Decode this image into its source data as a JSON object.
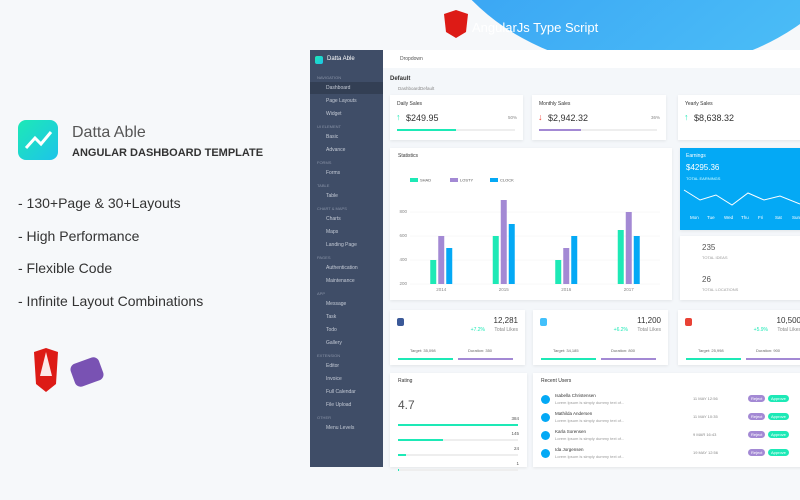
{
  "promo": {
    "brand": "Datta Able",
    "subtitle": "ANGULAR DASHBOARD TEMPLATE",
    "features": [
      "- 130+Page & 30+Layouts",
      "- High Performance",
      "- Flexible Code",
      "- Infinite Layout Combinations"
    ],
    "banner": "AngularJs Type Script"
  },
  "dashboard": {
    "sidebar": {
      "brand": "Datta Able",
      "groups": [
        {
          "header": "NAVIGATION",
          "items": [
            "Dashboard",
            "Page Layouts",
            "Widget"
          ]
        },
        {
          "header": "UI ELEMENT",
          "items": [
            "Basic",
            "Advance"
          ]
        },
        {
          "header": "FORMS",
          "items": [
            "Forms"
          ]
        },
        {
          "header": "TABLE",
          "items": [
            "Table"
          ]
        },
        {
          "header": "CHART & MAPS",
          "items": [
            "Charts",
            "Maps",
            "Landing Page"
          ]
        },
        {
          "header": "PAGES",
          "items": [
            "Authentication",
            "Maintenance"
          ]
        },
        {
          "header": "APP",
          "items": [
            "Message",
            "Task",
            "Todo",
            "Gallery"
          ]
        },
        {
          "header": "EXTENSION",
          "items": [
            "Editor",
            "Invoice",
            "Full Calendar",
            "File Upload"
          ]
        },
        {
          "header": "OTHER",
          "items": [
            "Menu Levels"
          ]
        }
      ]
    },
    "topbar": {
      "menu": "Dropdown"
    },
    "page": {
      "title": "Default",
      "breadcrumb": [
        "Dashboard",
        "Default"
      ]
    },
    "sales": [
      {
        "title": "Daily Sales",
        "value": "$249.95",
        "percent": "50%"
      },
      {
        "title": "Monthly Sales",
        "value": "$2,942.32",
        "percent": "36%"
      },
      {
        "title": "Yearly Sales",
        "value": "$8,638.32"
      }
    ],
    "statistics": {
      "title": "Statistics",
      "categories": [
        "2014",
        "2015",
        "2016",
        "2017"
      ],
      "series": [
        {
          "name": "SHAD",
          "color": "#1de9b6",
          "values": [
            400,
            600,
            400,
            650
          ]
        },
        {
          "name": "LOSTY",
          "color": "#a389d4",
          "values": [
            600,
            900,
            500,
            800
          ]
        },
        {
          "name": "CLOCK",
          "color": "#04a9f5",
          "values": [
            500,
            700,
            600,
            600
          ]
        }
      ],
      "ylim": [
        200,
        900
      ],
      "yticks": [
        200,
        400,
        600,
        800
      ]
    },
    "earnings": {
      "title": "Earnings",
      "value": "$4295.36",
      "caption": "TOTAL EARNINGS",
      "days": [
        "Mon",
        "Tue",
        "Wed",
        "Thu",
        "Fri",
        "Sat",
        "Sun"
      ]
    },
    "totals": [
      {
        "value": "235",
        "label": "TOTAL IDEAS"
      },
      {
        "value": "26",
        "label": "TOTAL LOCATIONS"
      }
    ],
    "social": [
      {
        "value": "12,281",
        "change": "+7.2%",
        "caption": "Total Likes",
        "target": "Target: 35,098",
        "duration": "Duration: 350"
      },
      {
        "value": "11,200",
        "change": "+6.2%",
        "caption": "Total Likes",
        "target": "Target: 34,185",
        "duration": "Duration: 800"
      },
      {
        "value": "10,500",
        "change": "+5.9%",
        "caption": "Total Likes",
        "target": "Target: 25,998",
        "duration": "Duration: 900"
      }
    ],
    "rating": {
      "title": "Rating",
      "score": "4.7",
      "rows": [
        384,
        145,
        24,
        1
      ]
    },
    "users": {
      "title": "Recent Users",
      "actions": [
        "Reject",
        "Approve"
      ],
      "rows": [
        {
          "name": "Isabella Christensen",
          "text": "Lorem Ipsum is simply dummy text of...",
          "date": "11 MAY 12:56"
        },
        {
          "name": "Mathilda Andersen",
          "text": "Lorem Ipsum is simply dummy text of...",
          "date": "11 MAY 10:35"
        },
        {
          "name": "Karla Sorensen",
          "text": "Lorem Ipsum is simply dummy text of...",
          "date": "9 MAR 16:43"
        },
        {
          "name": "Ida Jorgensen",
          "text": "Lorem Ipsum is simply dummy text of...",
          "date": "19 MAY 12:56"
        }
      ]
    }
  }
}
